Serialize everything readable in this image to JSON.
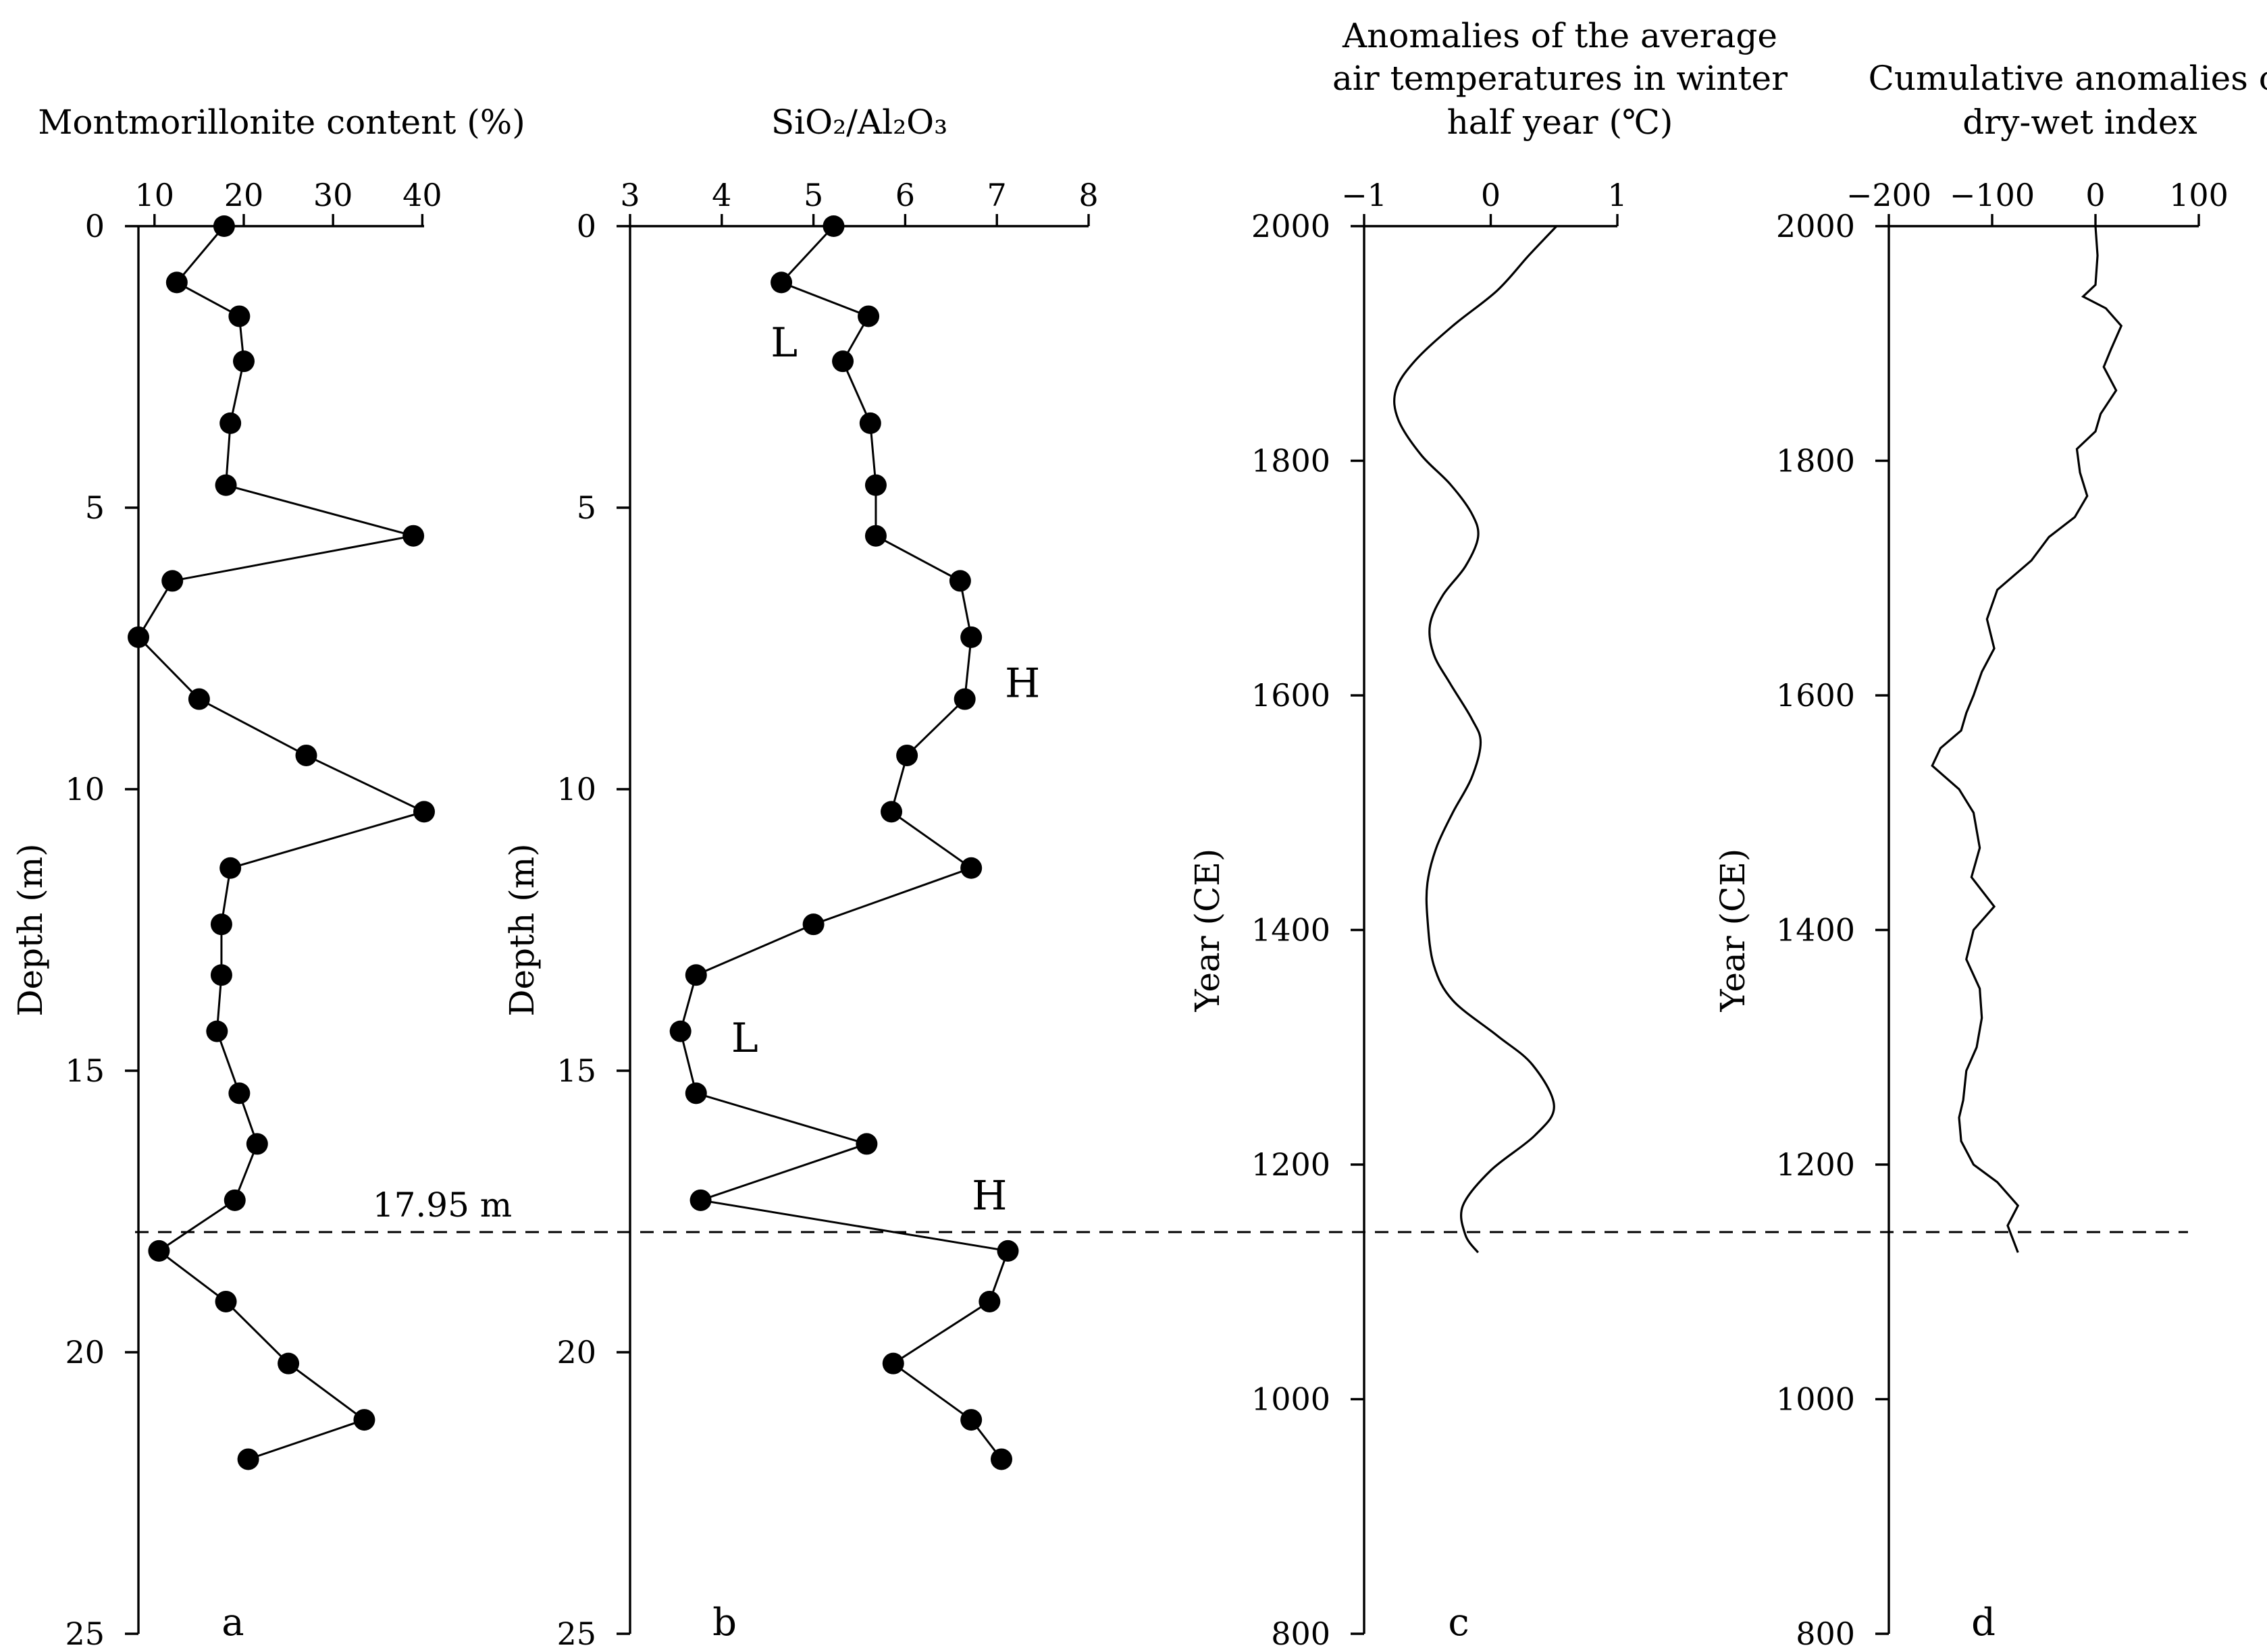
{
  "figure": {
    "reference_line_label": "17.95 m"
  },
  "chart_data": [
    {
      "id": "a",
      "type": "scatter",
      "panel_label": "a",
      "title": "Montmorillonite content (%)",
      "ylabel": "Depth (m)",
      "xlim": [
        8.2,
        40.2
      ],
      "ylim": [
        0,
        25
      ],
      "y_inverted": true,
      "x_ticks": [
        10,
        20,
        30,
        40
      ],
      "y_ticks": [
        0,
        5,
        10,
        15,
        20,
        25
      ],
      "points": [
        {
          "x": 17.8,
          "y": 0.0
        },
        {
          "x": 12.5,
          "y": 1.0
        },
        {
          "x": 19.5,
          "y": 1.6
        },
        {
          "x": 20.0,
          "y": 2.4
        },
        {
          "x": 18.5,
          "y": 3.5
        },
        {
          "x": 18.0,
          "y": 4.6
        },
        {
          "x": 39.0,
          "y": 5.5
        },
        {
          "x": 12.0,
          "y": 6.3
        },
        {
          "x": 8.2,
          "y": 7.3
        },
        {
          "x": 15.0,
          "y": 8.4
        },
        {
          "x": 27.0,
          "y": 9.4
        },
        {
          "x": 40.2,
          "y": 10.4
        },
        {
          "x": 18.5,
          "y": 11.4
        },
        {
          "x": 17.5,
          "y": 12.4
        },
        {
          "x": 17.5,
          "y": 13.3
        },
        {
          "x": 17.0,
          "y": 14.3
        },
        {
          "x": 19.5,
          "y": 15.4
        },
        {
          "x": 21.5,
          "y": 16.3
        },
        {
          "x": 19.0,
          "y": 17.3
        },
        {
          "x": 10.5,
          "y": 18.2
        },
        {
          "x": 18.0,
          "y": 19.1
        },
        {
          "x": 25.0,
          "y": 20.2
        },
        {
          "x": 33.5,
          "y": 21.2
        },
        {
          "x": 20.5,
          "y": 21.9
        }
      ],
      "annotations": []
    },
    {
      "id": "b",
      "type": "scatter",
      "panel_label": "b",
      "title": "SiO₂/Al₂O₃",
      "ylabel": "Depth (m)",
      "xlim": [
        3,
        8
      ],
      "ylim": [
        0,
        25
      ],
      "y_inverted": true,
      "x_ticks": [
        3,
        4,
        5,
        6,
        7,
        8
      ],
      "y_ticks": [
        0,
        5,
        10,
        15,
        20,
        25
      ],
      "points": [
        {
          "x": 5.22,
          "y": 0.0
        },
        {
          "x": 4.65,
          "y": 1.0
        },
        {
          "x": 5.6,
          "y": 1.6
        },
        {
          "x": 5.32,
          "y": 2.4
        },
        {
          "x": 5.62,
          "y": 3.5
        },
        {
          "x": 5.68,
          "y": 4.6
        },
        {
          "x": 5.68,
          "y": 5.5
        },
        {
          "x": 6.6,
          "y": 6.3
        },
        {
          "x": 6.72,
          "y": 7.3
        },
        {
          "x": 6.65,
          "y": 8.4
        },
        {
          "x": 6.02,
          "y": 9.4
        },
        {
          "x": 5.85,
          "y": 10.4
        },
        {
          "x": 6.72,
          "y": 11.4
        },
        {
          "x": 5.0,
          "y": 12.4
        },
        {
          "x": 3.72,
          "y": 13.3
        },
        {
          "x": 3.55,
          "y": 14.3
        },
        {
          "x": 3.72,
          "y": 15.4
        },
        {
          "x": 5.58,
          "y": 16.3
        },
        {
          "x": 3.77,
          "y": 17.3
        },
        {
          "x": 7.12,
          "y": 18.2
        },
        {
          "x": 6.92,
          "y": 19.1
        },
        {
          "x": 5.87,
          "y": 20.2
        },
        {
          "x": 6.72,
          "y": 21.2
        },
        {
          "x": 7.05,
          "y": 21.9
        }
      ],
      "annotations": [
        {
          "text": "L",
          "x": 4.68,
          "y": 2.05
        },
        {
          "text": "H",
          "x": 7.28,
          "y": 8.1
        },
        {
          "text": "L",
          "x": 4.25,
          "y": 14.4
        },
        {
          "text": "H",
          "x": 6.92,
          "y": 17.2
        }
      ]
    },
    {
      "id": "c",
      "type": "line",
      "panel_label": "c",
      "title": [
        "Anomalies of the average",
        "air temperatures in winter",
        "half year (℃)"
      ],
      "ylabel": "Year (CE)",
      "xlim": [
        -1,
        1
      ],
      "ylim": [
        800,
        2000
      ],
      "x_ticks": [
        -1,
        0,
        1
      ],
      "x_tick_labels": [
        "−1",
        "0",
        "1"
      ],
      "y_ticks": [
        800,
        1000,
        1200,
        1400,
        1600,
        1800,
        2000
      ],
      "points": [
        {
          "x": 0.52,
          "y": 2000
        },
        {
          "x": 0.3,
          "y": 1975
        },
        {
          "x": 0.05,
          "y": 1945
        },
        {
          "x": -0.3,
          "y": 1915
        },
        {
          "x": -0.6,
          "y": 1885
        },
        {
          "x": -0.75,
          "y": 1860
        },
        {
          "x": -0.73,
          "y": 1835
        },
        {
          "x": -0.55,
          "y": 1805
        },
        {
          "x": -0.32,
          "y": 1780
        },
        {
          "x": -0.15,
          "y": 1755
        },
        {
          "x": -0.1,
          "y": 1735
        },
        {
          "x": -0.2,
          "y": 1710
        },
        {
          "x": -0.38,
          "y": 1685
        },
        {
          "x": -0.48,
          "y": 1660
        },
        {
          "x": -0.45,
          "y": 1635
        },
        {
          "x": -0.32,
          "y": 1610
        },
        {
          "x": -0.15,
          "y": 1580
        },
        {
          "x": -0.08,
          "y": 1560
        },
        {
          "x": -0.15,
          "y": 1530
        },
        {
          "x": -0.3,
          "y": 1500
        },
        {
          "x": -0.43,
          "y": 1470
        },
        {
          "x": -0.5,
          "y": 1440
        },
        {
          "x": -0.5,
          "y": 1410
        },
        {
          "x": -0.45,
          "y": 1370
        },
        {
          "x": -0.3,
          "y": 1340
        },
        {
          "x": 0.05,
          "y": 1310
        },
        {
          "x": 0.33,
          "y": 1285
        },
        {
          "x": 0.5,
          "y": 1250
        },
        {
          "x": 0.35,
          "y": 1225
        },
        {
          "x": 0.0,
          "y": 1195
        },
        {
          "x": -0.22,
          "y": 1165
        },
        {
          "x": -0.2,
          "y": 1140
        },
        {
          "x": -0.1,
          "y": 1125
        }
      ]
    },
    {
      "id": "d",
      "type": "line",
      "panel_label": "d",
      "title": [
        "Cumulative anomalies of",
        "dry-wet index"
      ],
      "ylabel": "Year (CE)",
      "xlim": [
        -200,
        100
      ],
      "ylim": [
        800,
        2000
      ],
      "x_ticks": [
        -200,
        -100,
        0,
        100
      ],
      "x_tick_labels": [
        "−200",
        "−100",
        "0",
        "100"
      ],
      "y_ticks": [
        800,
        1000,
        1200,
        1400,
        1600,
        1800,
        2000
      ],
      "points": [
        {
          "x": 0,
          "y": 2000
        },
        {
          "x": 2,
          "y": 1975
        },
        {
          "x": 0,
          "y": 1950
        },
        {
          "x": -12,
          "y": 1940
        },
        {
          "x": 10,
          "y": 1930
        },
        {
          "x": 25,
          "y": 1915
        },
        {
          "x": 15,
          "y": 1895
        },
        {
          "x": 8,
          "y": 1880
        },
        {
          "x": 20,
          "y": 1860
        },
        {
          "x": 5,
          "y": 1840
        },
        {
          "x": 0,
          "y": 1825
        },
        {
          "x": -18,
          "y": 1810
        },
        {
          "x": -15,
          "y": 1790
        },
        {
          "x": -8,
          "y": 1770
        },
        {
          "x": -20,
          "y": 1752
        },
        {
          "x": -45,
          "y": 1735
        },
        {
          "x": -62,
          "y": 1715
        },
        {
          "x": -95,
          "y": 1690
        },
        {
          "x": -105,
          "y": 1665
        },
        {
          "x": -98,
          "y": 1640
        },
        {
          "x": -110,
          "y": 1620
        },
        {
          "x": -118,
          "y": 1600
        },
        {
          "x": -125,
          "y": 1585
        },
        {
          "x": -130,
          "y": 1570
        },
        {
          "x": -150,
          "y": 1555
        },
        {
          "x": -158,
          "y": 1540
        },
        {
          "x": -132,
          "y": 1520
        },
        {
          "x": -118,
          "y": 1500
        },
        {
          "x": -112,
          "y": 1470
        },
        {
          "x": -120,
          "y": 1445
        },
        {
          "x": -98,
          "y": 1420
        },
        {
          "x": -118,
          "y": 1400
        },
        {
          "x": -125,
          "y": 1375
        },
        {
          "x": -112,
          "y": 1350
        },
        {
          "x": -110,
          "y": 1325
        },
        {
          "x": -115,
          "y": 1300
        },
        {
          "x": -125,
          "y": 1280
        },
        {
          "x": -128,
          "y": 1255
        },
        {
          "x": -132,
          "y": 1240
        },
        {
          "x": -130,
          "y": 1220
        },
        {
          "x": -118,
          "y": 1200
        },
        {
          "x": -95,
          "y": 1185
        },
        {
          "x": -75,
          "y": 1165
        },
        {
          "x": -85,
          "y": 1148
        },
        {
          "x": -75,
          "y": 1125
        }
      ]
    }
  ]
}
